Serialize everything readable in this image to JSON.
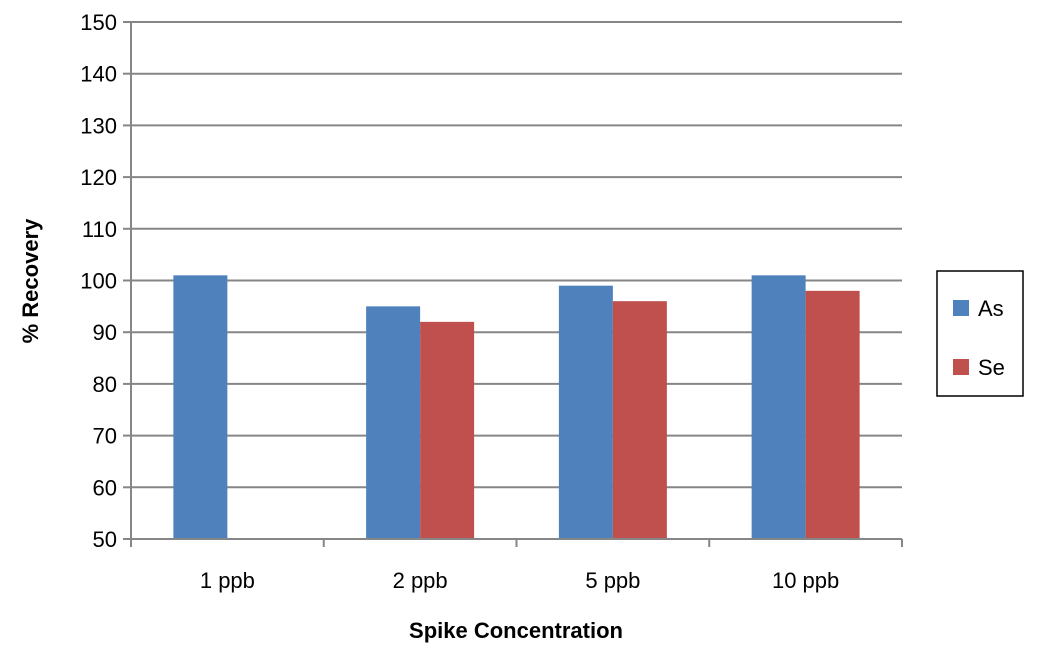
{
  "chart_data": {
    "type": "bar",
    "title": "",
    "xlabel": "Spike Concentration",
    "ylabel": "% Recovery",
    "categories": [
      "1 ppb",
      "2 ppb",
      "5 ppb",
      "10 ppb"
    ],
    "series": [
      {
        "name": "As",
        "color": "#4f81bd",
        "values": [
          101,
          95,
          99,
          101
        ]
      },
      {
        "name": "Se",
        "color": "#c0504d",
        "values": [
          null,
          92,
          96,
          98
        ]
      }
    ],
    "ylim": [
      50,
      150
    ],
    "yticks": [
      50,
      60,
      70,
      80,
      90,
      100,
      110,
      120,
      130,
      140,
      150
    ],
    "grid": true,
    "legend_position": "right"
  }
}
